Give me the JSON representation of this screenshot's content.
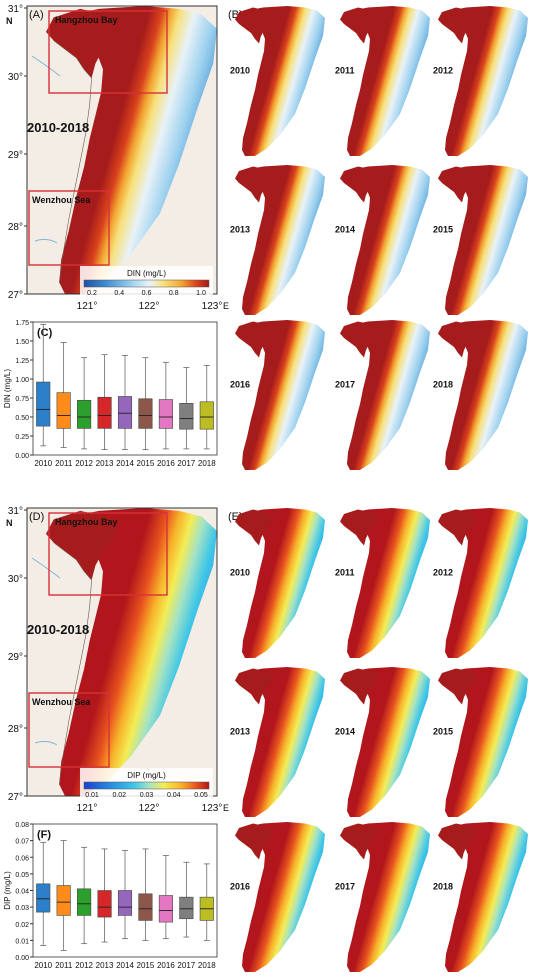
{
  "colors": {
    "land": "#f3ede6",
    "river": "#7fb6d6",
    "din_ramp": [
      "#1f4fa8",
      "#3f8fd0",
      "#9cd0ee",
      "#e8f2f8",
      "#f7e07a",
      "#f2a531",
      "#d9421c",
      "#a61c1c"
    ],
    "dip_ramp": [
      "#1a3fd1",
      "#2a8fe0",
      "#3fc6e8",
      "#a6e3c3",
      "#f4ec53",
      "#f7b12a",
      "#e8531e",
      "#b0161c"
    ],
    "frame_red": "#d8313a",
    "box_colors": [
      "#2c7fc9",
      "#ff8c1a",
      "#2ca02c",
      "#d62728",
      "#9467bd",
      "#8c564b",
      "#e377c2",
      "#7f7f7f",
      "#bcbd22"
    ]
  },
  "top": {
    "main": {
      "panel_label": "(A)",
      "period": "2010-2018",
      "region_north": "Hangzhou Bay",
      "region_south": "Wenzhou Sea",
      "lat_ticks": [
        "31°",
        "30°",
        "29°",
        "28°",
        "27°"
      ],
      "north_label": "N",
      "lon_ticks": [
        "121°",
        "122°",
        "123°"
      ],
      "east_label": "E",
      "colorbar_title": "DIN (mg/L)",
      "colorbar_ticks": [
        "0.2",
        "0.4",
        "0.6",
        "0.8",
        "1.0"
      ]
    },
    "grid": {
      "panel_label": "(B)",
      "years": [
        "2010",
        "2011",
        "2012",
        "2013",
        "2014",
        "2015",
        "2016",
        "2017",
        "2018"
      ]
    },
    "boxplot": {
      "panel_label": "(C)",
      "chart_data": {
        "type": "box",
        "ylabel": "DIN (mg/L)",
        "ylim": [
          0,
          1.75
        ],
        "yticks": [
          "0.00",
          "0.25",
          "0.50",
          "0.75",
          "1.00",
          "1.25",
          "1.50",
          "1.75"
        ],
        "categories": [
          "2010",
          "2011",
          "2012",
          "2013",
          "2014",
          "2015",
          "2016",
          "2017",
          "2018"
        ],
        "whisker_low": [
          0.12,
          0.1,
          0.08,
          0.07,
          0.07,
          0.07,
          0.08,
          0.08,
          0.08
        ],
        "q1": [
          0.38,
          0.35,
          0.35,
          0.35,
          0.35,
          0.35,
          0.35,
          0.34,
          0.34
        ],
        "median": [
          0.6,
          0.52,
          0.5,
          0.52,
          0.55,
          0.52,
          0.5,
          0.48,
          0.5
        ],
        "q3": [
          0.96,
          0.82,
          0.72,
          0.76,
          0.77,
          0.74,
          0.73,
          0.68,
          0.7
        ],
        "whisker_high": [
          1.72,
          1.48,
          1.28,
          1.32,
          1.31,
          1.28,
          1.22,
          1.15,
          1.18
        ]
      }
    }
  },
  "bottom": {
    "main": {
      "panel_label": "(D)",
      "period": "2010-2018",
      "region_north": "Hangzhou Bay",
      "region_south": "Wenzhou Sea",
      "lat_ticks": [
        "31°",
        "30°",
        "29°",
        "28°",
        "27°"
      ],
      "north_label": "N",
      "lon_ticks": [
        "121°",
        "122°",
        "123°"
      ],
      "east_label": "E",
      "colorbar_title": "DIP (mg/L)",
      "colorbar_ticks": [
        "0.01",
        "0.02",
        "0.03",
        "0.04",
        "0.05"
      ]
    },
    "grid": {
      "panel_label": "(E)",
      "years": [
        "2010",
        "2011",
        "2012",
        "2013",
        "2014",
        "2015",
        "2016",
        "2017",
        "2018"
      ]
    },
    "boxplot": {
      "panel_label": "(F)",
      "chart_data": {
        "type": "box",
        "ylabel": "DIP (mg/L)",
        "ylim": [
          0,
          0.08
        ],
        "yticks": [
          "0.00",
          "0.01",
          "0.02",
          "0.03",
          "0.04",
          "0.05",
          "0.06",
          "0.07",
          "0.08"
        ],
        "categories": [
          "2010",
          "2011",
          "2012",
          "2013",
          "2014",
          "2015",
          "2016",
          "2017",
          "2018"
        ],
        "whisker_low": [
          0.007,
          0.004,
          0.008,
          0.009,
          0.011,
          0.01,
          0.011,
          0.012,
          0.01
        ],
        "q1": [
          0.027,
          0.025,
          0.025,
          0.024,
          0.025,
          0.022,
          0.021,
          0.023,
          0.022
        ],
        "median": [
          0.035,
          0.033,
          0.032,
          0.03,
          0.03,
          0.029,
          0.028,
          0.029,
          0.029
        ],
        "q3": [
          0.044,
          0.043,
          0.041,
          0.04,
          0.04,
          0.038,
          0.037,
          0.036,
          0.036
        ],
        "whisker_high": [
          0.069,
          0.07,
          0.066,
          0.065,
          0.064,
          0.065,
          0.061,
          0.057,
          0.056
        ]
      }
    }
  }
}
